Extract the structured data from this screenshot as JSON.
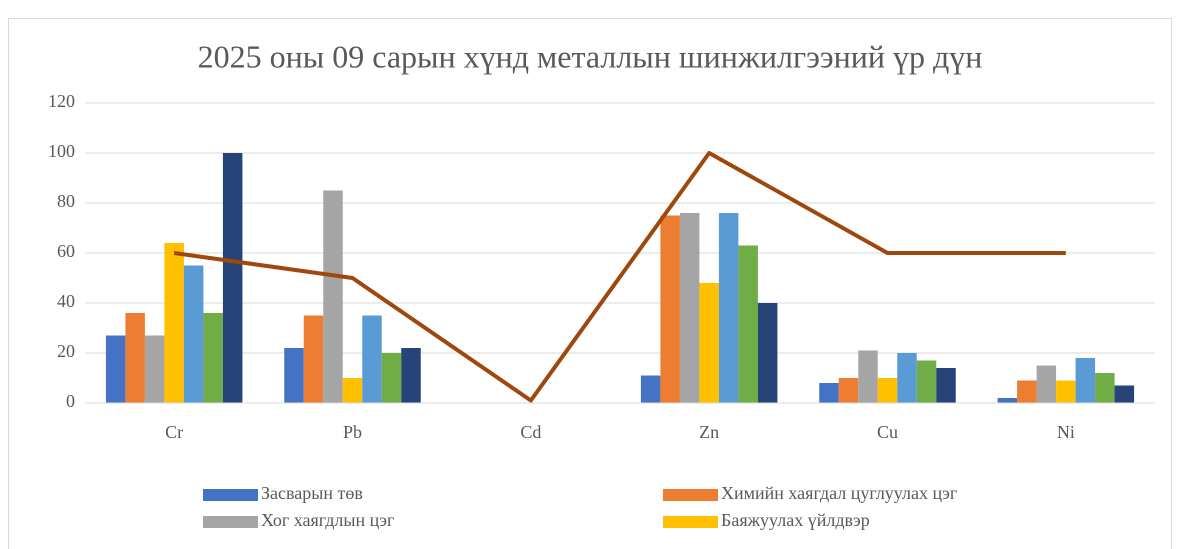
{
  "chart_data": {
    "type": "bar",
    "title": "2025 оны 09 сарын хүнд металлын шинжилгээний үр дүн",
    "categories": [
      "Cr",
      "Pb",
      "Cd",
      "Zn",
      "Cu",
      "Ni"
    ],
    "series": [
      {
        "name": "Засварын төв",
        "color": "#4472c4",
        "values": [
          27,
          22,
          0,
          11,
          8,
          2
        ]
      },
      {
        "name": "Химийн хаягдал цуглуулах цэг",
        "color": "#ed7d31",
        "values": [
          36,
          35,
          0,
          75,
          10,
          9
        ]
      },
      {
        "name": "Хог хаягдлын цэг",
        "color": "#a5a5a5",
        "values": [
          27,
          85,
          0,
          76,
          21,
          15
        ]
      },
      {
        "name": "Баяжуулах үйлдвэр",
        "color": "#ffc000",
        "values": [
          64,
          10,
          0,
          48,
          10,
          9
        ]
      },
      {
        "color": "#5b9bd5",
        "values": [
          55,
          35,
          0,
          76,
          20,
          18
        ]
      },
      {
        "color": "#70ad47",
        "values": [
          36,
          20,
          0,
          63,
          17,
          12
        ]
      },
      {
        "color": "#264478",
        "values": [
          100,
          22,
          0,
          40,
          14,
          7
        ]
      },
      {
        "type": "line",
        "color": "#9e480e",
        "values": [
          60,
          50,
          1,
          100,
          60,
          60
        ]
      }
    ],
    "ylim": [
      0,
      120
    ],
    "yticks": [
      0,
      20,
      40,
      60,
      80,
      100,
      120
    ],
    "grid": true
  }
}
